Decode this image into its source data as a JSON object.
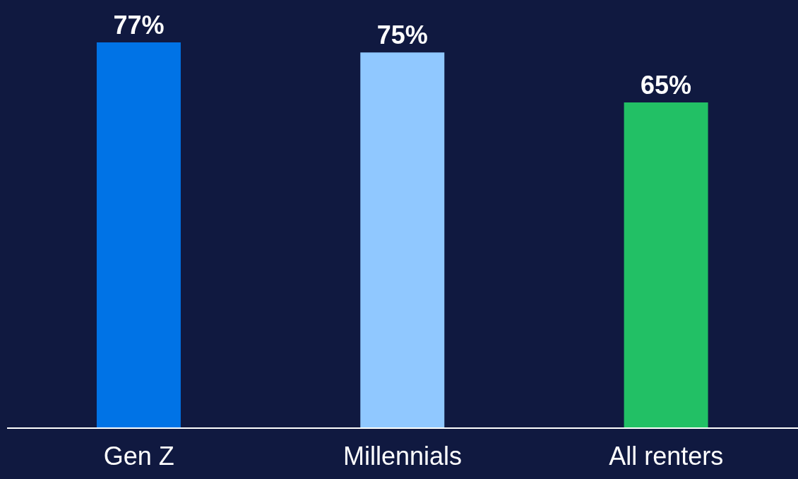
{
  "chart_data": {
    "type": "bar",
    "categories": [
      "Gen Z",
      "Millennials",
      "All renters"
    ],
    "values": [
      77,
      75,
      65
    ],
    "colors": [
      "#0073e6",
      "#90c8ff",
      "#22c065"
    ],
    "value_labels": [
      "77%",
      "75%",
      "65%"
    ]
  }
}
